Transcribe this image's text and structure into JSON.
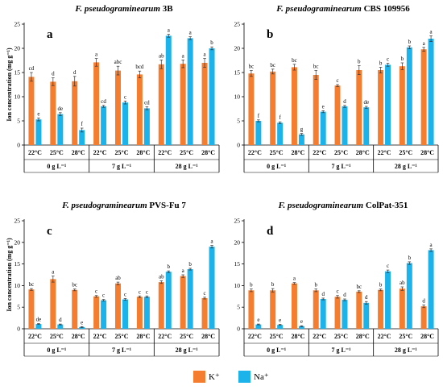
{
  "chart_data": [
    {
      "type": "bar",
      "title_italic": "F. pseudograminearum",
      "title_rest": "3B",
      "panel_letter": "a",
      "ylabel": "Ion concentration (mg g⁻¹)",
      "ylim": [
        0,
        25
      ],
      "yticks": [
        0,
        5,
        10,
        15,
        20,
        25
      ],
      "categories": [
        "22°C",
        "25°C",
        "28°C",
        "22°C",
        "25°C",
        "28°C",
        "22°C",
        "25°C",
        "28°C"
      ],
      "groups": [
        "0 g L⁻¹",
        "7 g L⁻¹",
        "28 g L⁻¹"
      ],
      "series": [
        {
          "name": "K⁺",
          "color": "#f47d30",
          "values": [
            14.1,
            13.1,
            13.2,
            17.1,
            15.4,
            14.6,
            16.7,
            16.8,
            17.0
          ],
          "errors": [
            0.9,
            0.8,
            1.0,
            0.8,
            0.9,
            0.7,
            0.9,
            0.8,
            0.9
          ],
          "labels": [
            "cd",
            "d",
            "d",
            "a",
            "abc",
            "bcd",
            "ab",
            "a",
            "a"
          ]
        },
        {
          "name": "Na⁺",
          "color": "#1cb2ea",
          "values": [
            5.3,
            6.4,
            3.1,
            8.0,
            8.8,
            7.6,
            22.6,
            22.1,
            20.0
          ],
          "errors": [
            0.3,
            0.3,
            0.4,
            0.2,
            0.3,
            0.3,
            0.3,
            0.3,
            0.3
          ],
          "labels": [
            "e",
            "de",
            "f",
            "cd",
            "c",
            "cd",
            "a",
            "a",
            "b"
          ]
        }
      ]
    },
    {
      "type": "bar",
      "title_italic": "F. pseudograminearum",
      "title_rest": "CBS 109956",
      "panel_letter": "b",
      "ylabel": "",
      "ylim": [
        0,
        25
      ],
      "yticks": [
        0,
        5,
        10,
        15,
        20,
        25
      ],
      "categories": [
        "22°C",
        "25°C",
        "28°C",
        "22°C",
        "25°C",
        "28°C",
        "22°C",
        "25°C",
        "28°C"
      ],
      "groups": [
        "0 g L⁻¹",
        "7 g L⁻¹",
        "28 g L⁻¹"
      ],
      "series": [
        {
          "name": "K⁺",
          "color": "#f47d30",
          "values": [
            14.8,
            15.2,
            16.1,
            14.5,
            12.3,
            15.5,
            15.5,
            16.3,
            19.8
          ],
          "errors": [
            0.6,
            0.5,
            0.6,
            0.9,
            0.2,
            0.9,
            0.6,
            0.7,
            0.4
          ],
          "labels": [
            "bc",
            "bc",
            "bc",
            "bc",
            "c",
            "b",
            "b",
            "b",
            "a"
          ]
        },
        {
          "name": "Na⁺",
          "color": "#1cb2ea",
          "values": [
            5.0,
            4.6,
            2.2,
            6.9,
            8.0,
            7.8,
            16.6,
            20.2,
            22.0
          ],
          "errors": [
            0.2,
            0.2,
            0.2,
            0.2,
            0.2,
            0.2,
            0.3,
            0.3,
            0.6
          ],
          "labels": [
            "f",
            "f",
            "g",
            "e",
            "d",
            "de",
            "c",
            "b",
            "a"
          ]
        }
      ]
    },
    {
      "type": "bar",
      "title_italic": "F. pseudograminearum",
      "title_rest": "PVS-Fu 7",
      "panel_letter": "c",
      "ylabel": "Ion concentration (mg g⁻¹)",
      "ylim": [
        0,
        25
      ],
      "yticks": [
        0,
        5,
        10,
        15,
        20,
        25
      ],
      "categories": [
        "22°C",
        "25°C",
        "28°C",
        "22°C",
        "25°C",
        "28°C",
        "22°C",
        "25°C",
        "28°C"
      ],
      "groups": [
        "0 g L⁻¹",
        "7 g L⁻¹",
        "28 g L⁻¹"
      ],
      "series": [
        {
          "name": "K⁺",
          "color": "#f47d30",
          "values": [
            9.1,
            11.5,
            9.0,
            7.5,
            10.5,
            7.4,
            10.8,
            12.2,
            7.1
          ],
          "errors": [
            0.2,
            0.7,
            0.2,
            0.2,
            0.3,
            0.2,
            0.3,
            0.3,
            0.2
          ],
          "labels": [
            "bc",
            "a",
            "bc",
            "c",
            "ab",
            "c",
            "ab",
            "a",
            "c"
          ]
        },
        {
          "name": "Na⁺",
          "color": "#1cb2ea",
          "values": [
            1.1,
            1.0,
            0.4,
            6.6,
            6.8,
            7.4,
            13.2,
            13.8,
            19.0
          ],
          "errors": [
            0.1,
            0.1,
            0.1,
            0.2,
            0.2,
            0.2,
            0.2,
            0.2,
            0.3
          ],
          "labels": [
            "de",
            "d",
            "e",
            "c",
            "c",
            "c",
            "b",
            "b",
            "a"
          ]
        }
      ]
    },
    {
      "type": "bar",
      "title_italic": "F. pseudograminearum",
      "title_rest": "ColPat-351",
      "panel_letter": "d",
      "ylabel": "",
      "ylim": [
        0,
        25
      ],
      "yticks": [
        0,
        5,
        10,
        15,
        20,
        25
      ],
      "categories": [
        "22°C",
        "25°C",
        "28°C",
        "22°C",
        "25°C",
        "28°C",
        "22°C",
        "25°C",
        "28°C"
      ],
      "groups": [
        "0 g L⁻¹",
        "7 g L⁻¹",
        "28 g L⁻¹"
      ],
      "series": [
        {
          "name": "K⁺",
          "color": "#f47d30",
          "values": [
            8.9,
            8.9,
            10.5,
            8.9,
            7.4,
            8.6,
            9.0,
            9.3,
            5.2
          ],
          "errors": [
            0.3,
            0.4,
            0.2,
            0.3,
            0.3,
            0.2,
            0.2,
            0.4,
            0.3
          ],
          "labels": [
            "b",
            "b",
            "a",
            "b",
            "c",
            "bc",
            "b",
            "ab",
            "d"
          ]
        },
        {
          "name": "Na⁺",
          "color": "#1cb2ea",
          "values": [
            1.0,
            0.9,
            0.6,
            6.9,
            6.7,
            6.0,
            13.3,
            15.2,
            18.2
          ],
          "errors": [
            0.1,
            0.1,
            0.1,
            0.2,
            0.2,
            0.3,
            0.3,
            0.3,
            0.3
          ],
          "labels": [
            "e",
            "e",
            "e",
            "d",
            "d",
            "d",
            "c",
            "b",
            "a"
          ]
        }
      ]
    }
  ],
  "legend": [
    {
      "label": "K⁺",
      "color": "#f47d30"
    },
    {
      "label": "Na⁺",
      "color": "#1cb2ea"
    }
  ]
}
